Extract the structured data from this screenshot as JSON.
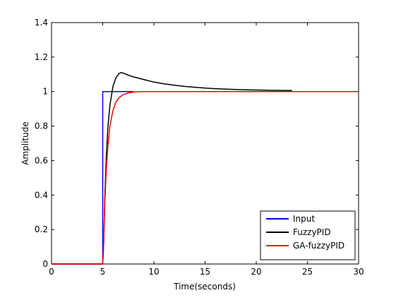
{
  "chart_data": {
    "type": "line",
    "title": "",
    "xlabel": "Time(seconds)",
    "ylabel": "Amplitude",
    "xlim": [
      0,
      30
    ],
    "ylim": [
      0,
      1.4
    ],
    "xticks": [
      0,
      5,
      10,
      15,
      20,
      25,
      30
    ],
    "yticks": [
      0,
      0.2,
      0.4,
      0.6,
      0.8,
      1,
      1.2,
      1.4
    ],
    "xtick_labels": [
      "0",
      "5",
      "10",
      "15",
      "20",
      "25",
      "30"
    ],
    "ytick_labels": [
      "0",
      "0.2",
      "0.4",
      "0.6",
      "0.8",
      "1",
      "1.2",
      "1.4"
    ],
    "grid": false,
    "legend_position": "bottom-right",
    "series": [
      {
        "name": "Input",
        "color": "#0000ff",
        "x": [
          0,
          5,
          5,
          5.4,
          8
        ],
        "y": [
          0,
          0,
          1,
          1,
          1
        ]
      },
      {
        "name": "FuzzyPID",
        "color": "#000000",
        "x": [
          0,
          5,
          5.1,
          5.2,
          5.35,
          5.5,
          5.7,
          6.0,
          6.3,
          6.6,
          6.8,
          7.1,
          7.5,
          8.0,
          9.0,
          10.0,
          11.0,
          12.0,
          13.0,
          14.0,
          15.0,
          16.0,
          17.0,
          18.0,
          19.0,
          20.0,
          21.0,
          22.0,
          23.5
        ],
        "y": [
          0,
          0,
          0.12,
          0.38,
          0.62,
          0.79,
          0.92,
          1.03,
          1.08,
          1.105,
          1.11,
          1.105,
          1.095,
          1.085,
          1.07,
          1.055,
          1.045,
          1.037,
          1.03,
          1.025,
          1.02,
          1.017,
          1.014,
          1.012,
          1.01,
          1.009,
          1.008,
          1.007,
          1.006
        ]
      },
      {
        "name": "GA-fuzzyPID",
        "color": "#ff0000",
        "x": [
          0,
          5,
          5.1,
          5.2,
          5.35,
          5.5,
          5.7,
          6.0,
          6.3,
          6.6,
          7.0,
          7.5,
          8.0,
          9.0,
          10.0,
          30.0
        ],
        "y": [
          0,
          0,
          0.12,
          0.35,
          0.55,
          0.68,
          0.8,
          0.89,
          0.94,
          0.965,
          0.982,
          0.992,
          0.997,
          1.0,
          1.0,
          1.0
        ]
      }
    ]
  }
}
